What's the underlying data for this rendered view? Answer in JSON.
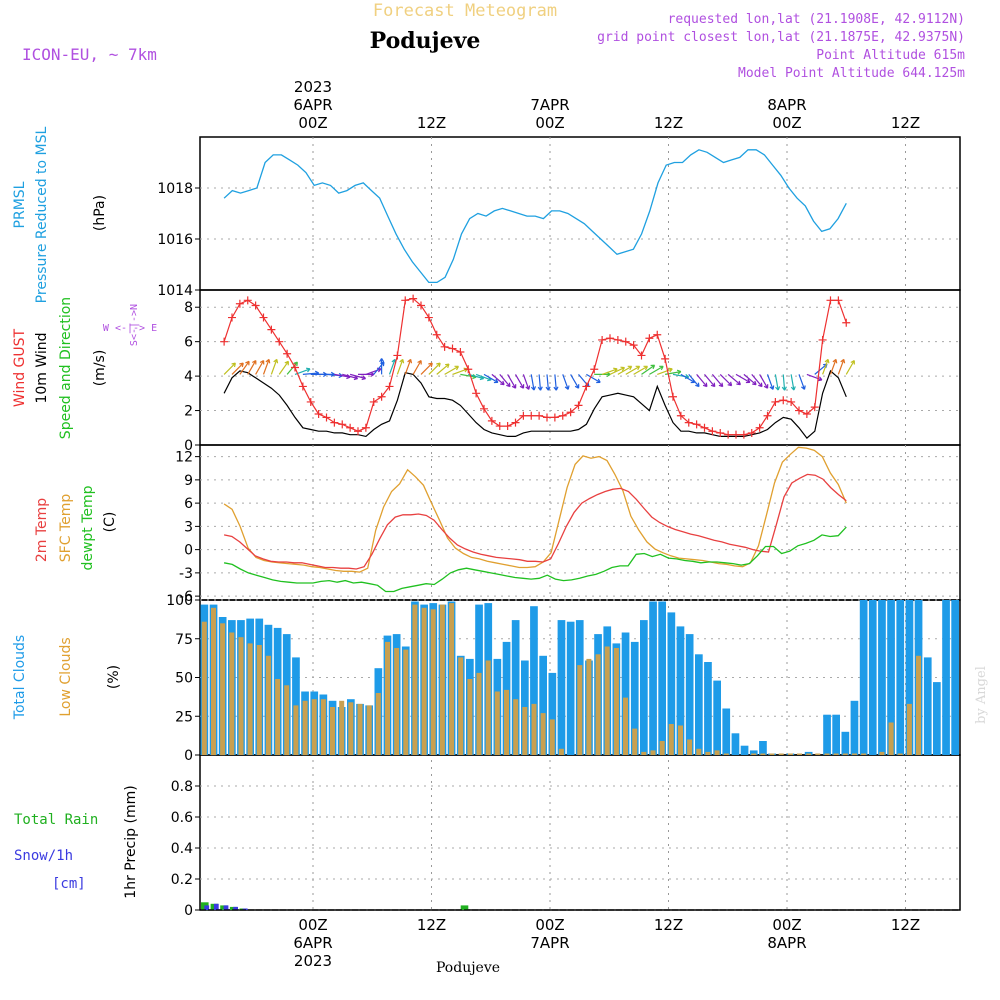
{
  "header": {
    "title": "Forecast Meteogram",
    "location": "Podujeve",
    "model": "ICON-EU, ~ 7km",
    "requested": "requested lon,lat (21.1908E, 42.9112N)",
    "gridpoint": "grid point closest lon,lat (21.1875E, 42.9375N)",
    "point_alt": "Point Altitude 615m",
    "model_alt": "Model Point Altitude 644.125m",
    "footer": "Podujeve",
    "credit": "by Angel"
  },
  "colors": {
    "pressure": "#1fa0e0",
    "gust": "#ee3030",
    "wind10m": "#000000",
    "temp2m": "#e84040",
    "sfctemp": "#e0a030",
    "dewpt": "#20c020",
    "totalcloud": "#1e9be8",
    "lowcloud": "#c8a050",
    "rain": "#20b020",
    "snow": "#3a3ae0",
    "purple": "#b050e0",
    "title": "#f0d080"
  },
  "chart_data": {
    "type": "meteogram",
    "x_hours_offset_start": -9,
    "x_hours_offset_end": 54,
    "top_ticks": [
      {
        "label": "00Z",
        "date": "6APR",
        "year": "2023",
        "hour": 0
      },
      {
        "label": "12Z",
        "date": "",
        "year": "",
        "hour": 12
      },
      {
        "label": "00Z",
        "date": "7APR",
        "year": "",
        "hour": 24
      },
      {
        "label": "12Z",
        "date": "",
        "year": "",
        "hour": 36
      },
      {
        "label": "00Z",
        "date": "8APR",
        "year": "",
        "hour": 48
      },
      {
        "label": "12Z",
        "date": "",
        "year": "",
        "hour": 60
      }
    ],
    "bottom_ticks": [
      {
        "label": "00Z",
        "date": "6APR",
        "year": "2023",
        "hour": 0
      },
      {
        "label": "12Z",
        "date": "",
        "year": "",
        "hour": 12
      },
      {
        "label": "00Z",
        "date": "7APR",
        "year": "",
        "hour": 24
      },
      {
        "label": "12Z",
        "date": "",
        "year": "",
        "hour": 36
      },
      {
        "label": "00Z",
        "date": "8APR",
        "year": "",
        "hour": 48
      },
      {
        "label": "12Z",
        "date": "",
        "year": "",
        "hour": 60
      }
    ],
    "pressure": {
      "ylabel_1": "PRMSL",
      "ylabel_2": "Pressure Reduced to MSL",
      "unit": "(hPa)",
      "ylim": [
        1014,
        1020
      ],
      "yticks": [
        1014,
        1016,
        1018
      ],
      "values": [
        1017.6,
        1017.9,
        1017.8,
        1017.9,
        1018.0,
        1019.0,
        1019.3,
        1019.3,
        1019.1,
        1018.9,
        1018.6,
        1018.1,
        1018.2,
        1018.1,
        1017.8,
        1017.9,
        1018.1,
        1018.2,
        1017.9,
        1017.6,
        1016.9,
        1016.2,
        1015.6,
        1015.1,
        1014.7,
        1014.3,
        1014.3,
        1014.5,
        1015.2,
        1016.2,
        1016.8,
        1017.0,
        1016.9,
        1017.1,
        1017.2,
        1017.1,
        1017.0,
        1016.9,
        1016.9,
        1016.8,
        1017.1,
        1017.1,
        1017.0,
        1016.8,
        1016.6,
        1016.3,
        1016.0,
        1015.7,
        1015.4,
        1015.5,
        1015.6,
        1016.2,
        1017.1,
        1018.2,
        1018.9,
        1019.0,
        1019.0,
        1019.3,
        1019.5,
        1019.4,
        1019.2,
        1019.0,
        1019.1,
        1019.2,
        1019.5,
        1019.5,
        1019.3,
        1018.9,
        1018.5,
        1018.0,
        1017.6,
        1017.3,
        1016.7,
        1016.3,
        1016.4,
        1016.8,
        1017.4
      ]
    },
    "wind": {
      "ylabel_gust": "Wind GUST",
      "ylabel_10m": "10m Wind",
      "ylabel_dir": "Speed and Direction",
      "unit": "(m/s)",
      "ylim": [
        0,
        9
      ],
      "yticks": [
        0,
        2,
        4,
        6,
        8
      ],
      "compass": "W <-|-> E",
      "compass_ns": "S<-|->N",
      "gust": [
        6.0,
        7.4,
        8.2,
        8.4,
        8.1,
        7.4,
        6.7,
        6.0,
        5.3,
        4.5,
        3.4,
        2.5,
        1.8,
        1.6,
        1.3,
        1.2,
        1.0,
        0.8,
        1.0,
        2.5,
        2.8,
        3.4,
        5.2,
        8.4,
        8.5,
        8.1,
        7.4,
        6.4,
        5.7,
        5.6,
        5.4,
        4.4,
        3.0,
        2.1,
        1.4,
        1.1,
        1.1,
        1.3,
        1.7,
        1.7,
        1.7,
        1.6,
        1.6,
        1.7,
        1.9,
        2.3,
        3.4,
        4.4,
        6.1,
        6.2,
        6.1,
        6.0,
        5.8,
        5.2,
        6.2,
        6.4,
        5.0,
        2.8,
        1.7,
        1.3,
        1.2,
        1.0,
        0.8,
        0.7,
        0.6,
        0.6,
        0.6,
        0.7,
        1.0,
        1.7,
        2.5,
        2.6,
        2.5,
        2.0,
        1.8,
        2.2,
        6.1,
        8.4,
        8.4,
        7.1
      ],
      "wind10m": [
        3.0,
        3.9,
        4.3,
        4.2,
        3.9,
        3.6,
        3.3,
        2.9,
        2.3,
        1.6,
        1.0,
        0.9,
        0.8,
        0.8,
        0.7,
        0.7,
        0.6,
        0.6,
        0.5,
        0.9,
        1.2,
        1.4,
        2.6,
        4.2,
        4.1,
        3.6,
        2.8,
        2.7,
        2.7,
        2.6,
        2.3,
        1.8,
        1.3,
        0.9,
        0.7,
        0.6,
        0.5,
        0.5,
        0.7,
        0.8,
        0.8,
        0.8,
        0.8,
        0.8,
        0.8,
        0.9,
        1.2,
        2.1,
        2.8,
        2.9,
        3.0,
        2.9,
        2.8,
        2.4,
        2.0,
        3.4,
        2.3,
        1.3,
        0.8,
        0.8,
        0.7,
        0.7,
        0.6,
        0.5,
        0.5,
        0.5,
        0.5,
        0.6,
        0.7,
        0.9,
        1.3,
        1.6,
        1.5,
        1.0,
        0.4,
        0.8,
        3.0,
        4.3,
        3.9,
        2.8
      ],
      "dir_deg": [
        225,
        225,
        215,
        210,
        210,
        200,
        200,
        215,
        220,
        250,
        265,
        270,
        270,
        275,
        280,
        285,
        285,
        270,
        250,
        220,
        180,
        200,
        200,
        200,
        210,
        225,
        225,
        230,
        240,
        250,
        280,
        285,
        290,
        300,
        310,
        320,
        330,
        330,
        340,
        350,
        355,
        355,
        355,
        340,
        330,
        320,
        300,
        270,
        250,
        245,
        240,
        240,
        240,
        235,
        240,
        250,
        260,
        280,
        300,
        320,
        320,
        320,
        320,
        315,
        310,
        300,
        310,
        320,
        330,
        340,
        350,
        355,
        350,
        340,
        290,
        230,
        200,
        200,
        200,
        210
      ]
    },
    "temperature": {
      "ylabel_1": "2m Temp",
      "ylabel_2": "SFC Temp",
      "ylabel_3": "dewpt Temp",
      "unit": "(C)",
      "ylim": [
        -6.5,
        13.5
      ],
      "yticks": [
        -6,
        -3,
        0,
        3,
        6,
        9,
        12
      ],
      "temp2m": [
        1.9,
        1.7,
        1.0,
        0.1,
        -0.8,
        -1.2,
        -1.5,
        -1.6,
        -1.6,
        -1.7,
        -1.7,
        -1.9,
        -2.1,
        -2.3,
        -2.3,
        -2.4,
        -2.4,
        -2.5,
        -2.2,
        -0.6,
        1.4,
        3.2,
        4.2,
        4.5,
        4.5,
        4.6,
        4.4,
        3.8,
        2.6,
        1.5,
        0.6,
        0.1,
        -0.3,
        -0.6,
        -0.8,
        -1.0,
        -1.1,
        -1.2,
        -1.3,
        -1.5,
        -1.5,
        -1.6,
        -1.2,
        0.8,
        3.0,
        4.8,
        6.0,
        6.6,
        7.1,
        7.5,
        7.8,
        7.9,
        7.5,
        6.5,
        5.3,
        4.2,
        3.5,
        3.0,
        2.6,
        2.3,
        2.0,
        1.8,
        1.5,
        1.2,
        1.0,
        0.7,
        0.5,
        0.3,
        0.0,
        -0.2,
        -0.3,
        3.2,
        6.8,
        8.6,
        9.2,
        9.7,
        9.6,
        9.1,
        8.0,
        7.1,
        6.3
      ],
      "sfctemp": [
        5.9,
        5.2,
        3.0,
        0.2,
        -1.0,
        -1.4,
        -1.6,
        -1.7,
        -1.8,
        -1.9,
        -2.0,
        -2.2,
        -2.3,
        -2.5,
        -2.7,
        -2.8,
        -2.8,
        -2.9,
        -2.4,
        2.5,
        5.5,
        7.5,
        8.5,
        10.3,
        9.4,
        8.3,
        6.0,
        3.8,
        1.5,
        0.2,
        -0.5,
        -1.0,
        -1.2,
        -1.5,
        -1.7,
        -1.9,
        -2.1,
        -2.3,
        -2.3,
        -2.2,
        -1.6,
        -0.4,
        3.8,
        8.0,
        11.0,
        12.1,
        11.8,
        12.0,
        11.5,
        9.7,
        7.6,
        4.3,
        2.5,
        1.0,
        0.1,
        -0.4,
        -0.8,
        -1.1,
        -1.2,
        -1.3,
        -1.4,
        -1.6,
        -1.8,
        -1.9,
        -2.1,
        -2.2,
        -1.7,
        0.5,
        4.5,
        8.6,
        11.3,
        12.3,
        13.2,
        13.1,
        12.8,
        12.0,
        9.9,
        8.4,
        6.0
      ],
      "dewpt": [
        -1.7,
        -1.9,
        -2.5,
        -3.0,
        -3.3,
        -3.6,
        -3.9,
        -4.1,
        -4.2,
        -4.3,
        -4.3,
        -4.3,
        -4.1,
        -4.0,
        -4.2,
        -4.0,
        -4.3,
        -4.2,
        -4.4,
        -4.6,
        -5.4,
        -5.4,
        -5.0,
        -4.8,
        -4.6,
        -4.4,
        -4.5,
        -3.8,
        -3.0,
        -2.6,
        -2.4,
        -2.6,
        -2.8,
        -3.0,
        -3.2,
        -3.4,
        -3.6,
        -3.7,
        -3.8,
        -3.7,
        -3.3,
        -3.8,
        -4.0,
        -3.9,
        -3.7,
        -3.4,
        -3.2,
        -2.8,
        -2.3,
        -2.1,
        -2.1,
        -0.6,
        -0.5,
        -0.9,
        -0.6,
        -1.1,
        -1.2,
        -1.4,
        -1.5,
        -1.7,
        -1.6,
        -1.6,
        -1.7,
        -1.8,
        -2.0,
        -1.8,
        -0.8,
        0.4,
        0.4,
        -0.5,
        -0.2,
        0.5,
        0.8,
        1.2,
        1.9,
        1.7,
        1.8,
        2.9
      ]
    },
    "clouds": {
      "ylabel_1": "Total Clouds",
      "ylabel_2": "Low Clouds",
      "unit": "(%)",
      "ylim": [
        0,
        100
      ],
      "yticks": [
        0,
        25,
        50,
        75,
        100
      ],
      "total": [
        97,
        97,
        89,
        87,
        87,
        88,
        88,
        84,
        82,
        78,
        63,
        41,
        41,
        39,
        35,
        31,
        36,
        33,
        32,
        56,
        77,
        78,
        70,
        99,
        97,
        98,
        97,
        99,
        64,
        62,
        97,
        98,
        62,
        73,
        87,
        61,
        96,
        64,
        53,
        87,
        86,
        87,
        61,
        78,
        83,
        72,
        79,
        73,
        87,
        99,
        99,
        92,
        83,
        78,
        65,
        60,
        48,
        30,
        14,
        6,
        3,
        9,
        1,
        0,
        1,
        0,
        2,
        0,
        26,
        26,
        15,
        35,
        100,
        100,
        100,
        100,
        100,
        100,
        100,
        63,
        47,
        100,
        100
      ],
      "low": [
        86,
        95,
        85,
        79,
        76,
        72,
        71,
        64,
        49,
        45,
        32,
        35,
        36,
        36,
        31,
        35,
        34,
        33,
        32,
        40,
        73,
        69,
        68,
        97,
        95,
        94,
        97,
        98,
        63,
        49,
        53,
        61,
        41,
        42,
        36,
        31,
        33,
        27,
        23,
        4,
        0,
        58,
        62,
        65,
        70,
        69,
        37,
        17,
        2,
        3,
        9,
        20,
        19,
        10,
        4,
        2,
        3,
        1,
        0,
        0,
        1,
        1,
        1,
        1,
        1,
        1,
        1,
        1,
        1,
        1,
        1,
        1,
        1,
        0,
        2,
        21,
        1,
        33,
        64
      ]
    },
    "precip": {
      "label_rain": "Total  Rain",
      "label_snow": "Snow/1h",
      "label_snow_unit": "[cm]",
      "ylabel": "1hr Precip (mm)",
      "ylim": [
        0,
        1.0
      ],
      "yticks": [
        0,
        0.2,
        0.4,
        0.6,
        0.8
      ],
      "rain": [
        0.05,
        0.04,
        0.03,
        0.02,
        0.01,
        0,
        0,
        0,
        0,
        0,
        0,
        0,
        0,
        0,
        0,
        0,
        0,
        0,
        0,
        0,
        0,
        0,
        0,
        0,
        0,
        0,
        0,
        0.03,
        0,
        0,
        0,
        0,
        0,
        0,
        0,
        0,
        0,
        0,
        0,
        0,
        0,
        0,
        0,
        0,
        0,
        0,
        0,
        0,
        0,
        0,
        0,
        0,
        0,
        0,
        0,
        0,
        0,
        0,
        0,
        0,
        0,
        0,
        0,
        0,
        0,
        0,
        0,
        0,
        0,
        0,
        0,
        0,
        0,
        0,
        0,
        0,
        0,
        0,
        0
      ],
      "snow": [
        0.03,
        0.04,
        0.03,
        0.02,
        0.01,
        0,
        0,
        0,
        0,
        0,
        0,
        0,
        0,
        0,
        0,
        0,
        0,
        0,
        0,
        0,
        0,
        0,
        0,
        0,
        0,
        0,
        0,
        0,
        0,
        0,
        0,
        0,
        0,
        0,
        0,
        0,
        0,
        0,
        0,
        0,
        0,
        0,
        0,
        0,
        0,
        0,
        0,
        0,
        0,
        0,
        0,
        0,
        0,
        0,
        0,
        0,
        0,
        0,
        0,
        0,
        0,
        0,
        0,
        0,
        0,
        0,
        0,
        0,
        0,
        0,
        0,
        0,
        0,
        0,
        0,
        0,
        0,
        0,
        0
      ]
    }
  }
}
